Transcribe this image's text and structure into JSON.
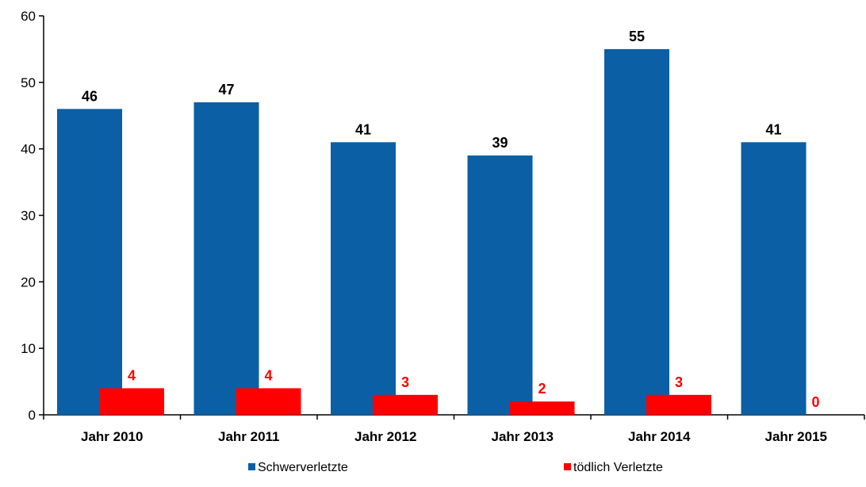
{
  "chart_data": {
    "type": "bar",
    "categories": [
      "Jahr 2010",
      "Jahr 2011",
      "Jahr 2012",
      "Jahr 2013",
      "Jahr 2014",
      "Jahr 2015"
    ],
    "series": [
      {
        "name": "Schwerverletzte",
        "values": [
          46,
          47,
          41,
          39,
          55,
          41
        ],
        "color": "#0b5fa5",
        "label_color": "#000000"
      },
      {
        "name": "tödlich Verletzte",
        "values": [
          4,
          4,
          3,
          2,
          3,
          0
        ],
        "color": "#ff0000",
        "label_color": "#ff0000"
      }
    ],
    "ylim": [
      0,
      60
    ],
    "yticks": [
      "0",
      "10",
      "20",
      "30",
      "40",
      "50",
      "60"
    ],
    "grid": false,
    "legend": "bottom"
  }
}
